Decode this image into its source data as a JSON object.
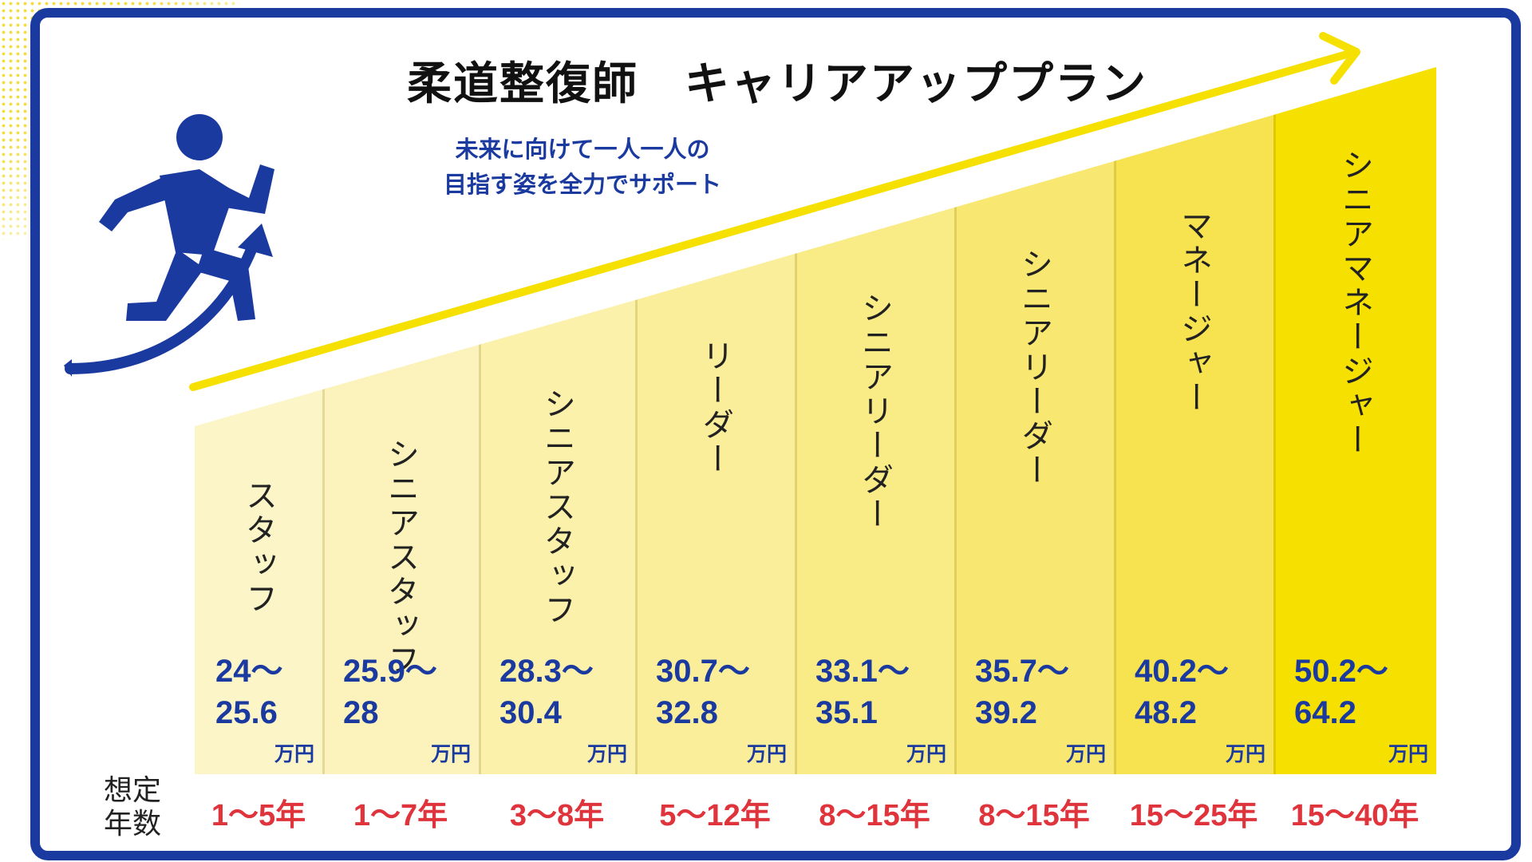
{
  "title": "柔道整復師　キャリアアッププラン",
  "subtitle": {
    "line1": "未来に向けて一人一人の",
    "line2": "目指す姿を全力でサポート"
  },
  "years_label": {
    "line1": "想定",
    "line2": "年数"
  },
  "unit": "万円",
  "colors": {
    "frame": "#1b3aa0",
    "accent_yellow": "#f5e000",
    "years_red": "#e0343c",
    "salary_blue": "#1b3aa0"
  },
  "stages": [
    {
      "role": "スタッフ",
      "salary_line1": "24〜",
      "salary_line2": "25.6",
      "years": "1〜5年"
    },
    {
      "role": "シニアスタッフ",
      "salary_line1": "25.9〜",
      "salary_line2": "28",
      "years": "1〜7年"
    },
    {
      "role": "シニアスタッフ",
      "salary_line1": "28.3〜",
      "salary_line2": "30.4",
      "years": "3〜8年"
    },
    {
      "role": "リーダー",
      "salary_line1": "30.7〜",
      "salary_line2": "32.8",
      "years": "5〜12年"
    },
    {
      "role": "シニアリーダー",
      "salary_line1": "33.1〜",
      "salary_line2": "35.1",
      "years": "8〜15年"
    },
    {
      "role": "シニアリーダー",
      "salary_line1": "35.7〜",
      "salary_line2": "39.2",
      "years": "8〜15年"
    },
    {
      "role": "マネージャー",
      "salary_line1": "40.2〜",
      "salary_line2": "48.2",
      "years": "15〜25年"
    },
    {
      "role": "シニアマネージャー",
      "salary_line1": "50.2〜",
      "salary_line2": "64.2",
      "years": "15〜40年"
    }
  ],
  "icons": {
    "runner": "runner-icon",
    "growth_arrow": "growth-arrow-icon",
    "trend_arrow": "trend-arrow-icon"
  }
}
